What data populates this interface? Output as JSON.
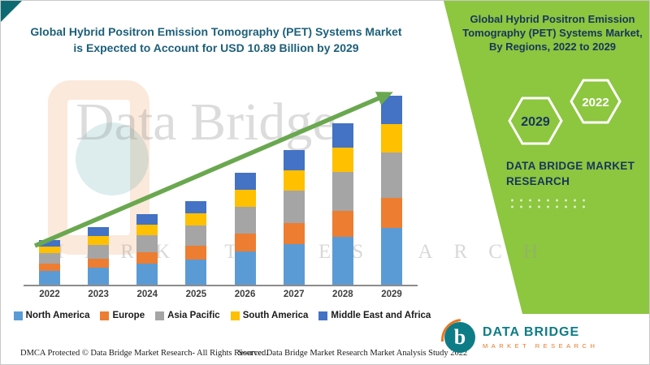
{
  "left_title": {
    "line1": "Global Hybrid Positron Emission Tomography (PET) Systems Market",
    "line2": "is Expected to Account for USD 10.89 Billion by 2029"
  },
  "right_panel": {
    "title": "Global Hybrid Positron Emission Tomography (PET) Systems Market, By Regions, 2022 to 2029",
    "hexagon_left_label": "2029",
    "hexagon_right_label": "2022",
    "brand_line1": "DATA BRIDGE MARKET",
    "brand_line2": "RESEARCH"
  },
  "watermark": {
    "text1": "Data Bridge",
    "text2": "MARKET RESEARCH"
  },
  "footer": {
    "dmca": "DMCA Protected © Data Bridge Market Research- All Rights Reserved.",
    "source": "Source: Data Bridge Market Research Market Analysis Study 2022"
  },
  "logo": {
    "glyph": "b",
    "name": "DATA BRIDGE",
    "sub": "MARKET RESEARCH"
  },
  "colors": {
    "green_panel": "#8DC63F",
    "arrow_green": "#6AA84F",
    "title_teal": "#1D5F7A",
    "navy": "#17365D",
    "logo_teal": "#0E7C86",
    "logo_orange": "#E87722"
  },
  "chart_data": {
    "type": "bar",
    "stacked": true,
    "title": "Global Hybrid Positron Emission Tomography (PET) Systems Market",
    "unit": "USD Billion",
    "legend_position": "bottom",
    "grid": false,
    "ylim": [
      0,
      12
    ],
    "categories": [
      "2022",
      "2023",
      "2024",
      "2025",
      "2026",
      "2027",
      "2028",
      "2029"
    ],
    "totals_usd_billion": [
      2.6,
      3.3,
      4.0,
      4.8,
      6.4,
      7.7,
      9.2,
      10.89
    ],
    "series": [
      {
        "name": "North America",
        "color": "#5B9BD5",
        "values": [
          0.78,
          0.99,
          1.2,
          1.44,
          1.92,
          2.31,
          2.76,
          3.27
        ]
      },
      {
        "name": "Europe",
        "color": "#ED7D31",
        "values": [
          0.42,
          0.53,
          0.64,
          0.77,
          1.02,
          1.23,
          1.47,
          1.74
        ]
      },
      {
        "name": "Asia Pacific",
        "color": "#A5A5A5",
        "values": [
          0.62,
          0.79,
          0.96,
          1.15,
          1.54,
          1.85,
          2.21,
          2.61
        ]
      },
      {
        "name": "South America",
        "color": "#FFC000",
        "values": [
          0.39,
          0.5,
          0.6,
          0.72,
          0.96,
          1.16,
          1.38,
          1.63
        ]
      },
      {
        "name": "Middle East and Africa",
        "color": "#4472C4",
        "values": [
          0.39,
          0.49,
          0.6,
          0.72,
          0.96,
          1.15,
          1.38,
          1.64
        ]
      }
    ],
    "annotation": "Upward trend arrow from 2022 to 2029"
  }
}
